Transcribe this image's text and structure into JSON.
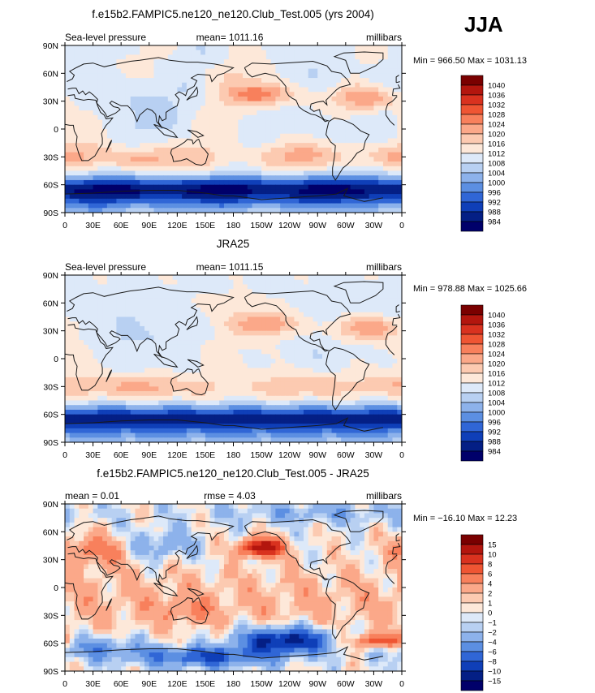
{
  "season": "JJA",
  "land_color": "#1a1a1a",
  "chart_data": [
    {
      "type": "heatmap",
      "title": "f.e15b2.FAMPIC5.ne120_ne120.Club_Test.005 (yrs 2004)",
      "left_label": "Sea-level pressure",
      "center_label": "mean= 1011.16",
      "right_label": "millibars",
      "minmax": "Min = 966.50 Max = 1031.13",
      "xlabels": [
        "0",
        "30E",
        "60E",
        "90E",
        "120E",
        "150E",
        "180",
        "150W",
        "120W",
        "90W",
        "60W",
        "30W",
        "0"
      ],
      "ylabels": [
        "90N",
        "60N",
        "30N",
        "0",
        "30S",
        "60S",
        "90S"
      ],
      "colorbar": {
        "labels": [
          "1040",
          "1036",
          "1032",
          "1028",
          "1024",
          "1020",
          "1016",
          "1012",
          "1008",
          "1004",
          "1000",
          "996",
          "992",
          "988",
          "984"
        ],
        "colors": [
          "#7a0000",
          "#b3160e",
          "#d9321f",
          "#ef5533",
          "#f8805c",
          "#fba889",
          "#fccab1",
          "#fde8d9",
          "#dde9f9",
          "#b8d0f2",
          "#8db2eb",
          "#5c8fe2",
          "#3066d6",
          "#0f3fb8",
          "#041f85",
          "#00006a"
        ]
      }
    },
    {
      "type": "heatmap",
      "title": "JRA25",
      "left_label": "Sea-level pressure",
      "center_label": "mean= 1011.15",
      "right_label": "millibars",
      "minmax": "Min = 978.88 Max = 1025.66",
      "xlabels": [
        "0",
        "30E",
        "60E",
        "90E",
        "120E",
        "150E",
        "180",
        "150W",
        "120W",
        "90W",
        "60W",
        "30W",
        "0"
      ],
      "ylabels": [
        "90N",
        "60N",
        "30N",
        "0",
        "30S",
        "60S",
        "90S"
      ],
      "colorbar": {
        "labels": [
          "1040",
          "1036",
          "1032",
          "1028",
          "1024",
          "1020",
          "1016",
          "1012",
          "1008",
          "1004",
          "1000",
          "996",
          "992",
          "988",
          "984"
        ],
        "colors": [
          "#7a0000",
          "#b3160e",
          "#d9321f",
          "#ef5533",
          "#f8805c",
          "#fba889",
          "#fccab1",
          "#fde8d9",
          "#dde9f9",
          "#b8d0f2",
          "#8db2eb",
          "#5c8fe2",
          "#3066d6",
          "#0f3fb8",
          "#041f85",
          "#00006a"
        ]
      }
    },
    {
      "type": "heatmap",
      "title": "f.e15b2.FAMPIC5.ne120_ne120.Club_Test.005 - JRA25",
      "left_label": "mean =    0.01",
      "center_label": "rmse =    4.03",
      "right_label": "millibars",
      "minmax": "Min = −16.10 Max =   12.23",
      "xlabels": [
        "0",
        "30E",
        "60E",
        "90E",
        "120E",
        "150E",
        "180",
        "150W",
        "120W",
        "90W",
        "60W",
        "30W",
        "0"
      ],
      "ylabels": [
        "90N",
        "60N",
        "30N",
        "0",
        "30S",
        "60S",
        "90S"
      ],
      "colorbar": {
        "labels": [
          "15",
          "10",
          "8",
          "6",
          "4",
          "2",
          "1",
          "0",
          "−1",
          "−2",
          "−4",
          "−6",
          "−8",
          "−10",
          "−15"
        ],
        "colors": [
          "#7a0000",
          "#b3160e",
          "#d9321f",
          "#ef5533",
          "#f8805c",
          "#fba889",
          "#fccab1",
          "#fde8d9",
          "#dde9f9",
          "#b8d0f2",
          "#8db2eb",
          "#5c8fe2",
          "#3066d6",
          "#0f3fb8",
          "#041f85",
          "#00006a"
        ]
      }
    }
  ]
}
